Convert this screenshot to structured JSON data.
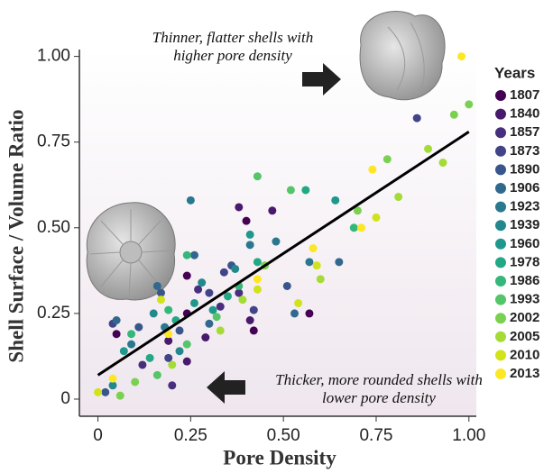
{
  "chart_data": {
    "type": "scatter",
    "x_label": "Pore Density",
    "y_label": "Shell Surface / Volume Ratio",
    "legend_title": "Years",
    "annotations": [
      [
        "Thinner, flatter shells with",
        "higher pore density"
      ],
      [
        "Thicker, more rounded shells with",
        "lower pore density"
      ]
    ],
    "xlim": [
      -0.05,
      1.02
    ],
    "ylim": [
      -0.05,
      1.02
    ],
    "xticks": [
      0,
      0.25,
      {
        "value": 0.5,
        "label": "0.50"
      },
      {
        "value": 0.75,
        "label": "0.75"
      },
      {
        "value": 1,
        "label": "1.00"
      }
    ],
    "yticks": [
      0,
      0.25,
      {
        "value": 0.5,
        "label": "0.50"
      },
      {
        "value": 0.75,
        "label": "0.75"
      },
      {
        "value": 1,
        "label": "1.00"
      }
    ],
    "trendline": {
      "color": "#000000",
      "x": [
        0,
        1
      ],
      "y": [
        0.07,
        0.78
      ]
    },
    "series": [
      {
        "name": "1807",
        "color": "#440154",
        "x": [
          0.05,
          0.24,
          0.4,
          0.57,
          0.24,
          0.42
        ],
        "values": [
          0.19,
          0.25,
          0.52,
          0.25,
          0.36,
          0.2
        ]
      },
      {
        "name": "1840",
        "color": "#481a6c",
        "x": [
          0.19,
          0.38,
          0.47,
          0.24,
          0.29,
          0.41
        ],
        "values": [
          0.17,
          0.56,
          0.55,
          0.11,
          0.18,
          0.23
        ]
      },
      {
        "name": "1857",
        "color": "#472f7d",
        "x": [
          0.2,
          0.33,
          0.38,
          0.27,
          0.12
        ],
        "values": [
          0.04,
          0.27,
          0.31,
          0.32,
          0.1
        ]
      },
      {
        "name": "1873",
        "color": "#414487",
        "x": [
          0.04,
          0.19,
          0.34,
          0.42,
          0.3,
          0.86
        ],
        "values": [
          0.22,
          0.12,
          0.37,
          0.26,
          0.31,
          0.82
        ]
      },
      {
        "name": "1890",
        "color": "#39568c",
        "x": [
          0.02,
          0.11,
          0.17,
          0.36,
          0.51,
          0.22
        ],
        "values": [
          0.02,
          0.21,
          0.31,
          0.39,
          0.33,
          0.2
        ]
      },
      {
        "name": "1906",
        "color": "#31688e",
        "x": [
          0.05,
          0.16,
          0.3,
          0.65,
          0.53,
          0.26
        ],
        "values": [
          0.23,
          0.33,
          0.22,
          0.4,
          0.25,
          0.42
        ]
      },
      {
        "name": "1923",
        "color": "#2a788e",
        "x": [
          0.09,
          0.18,
          0.25,
          0.48,
          0.41,
          0.57
        ],
        "values": [
          0.16,
          0.21,
          0.58,
          0.46,
          0.45,
          0.4
        ]
      },
      {
        "name": "1939",
        "color": "#23888e",
        "x": [
          0.15,
          0.28,
          0.04,
          0.37,
          0.22
        ],
        "values": [
          0.25,
          0.34,
          0.04,
          0.38,
          0.14
        ]
      },
      {
        "name": "1960",
        "color": "#1f988b",
        "x": [
          0.07,
          0.26,
          0.41,
          0.64,
          0.31
        ],
        "values": [
          0.14,
          0.28,
          0.48,
          0.58,
          0.26
        ]
      },
      {
        "name": "1978",
        "color": "#22a884",
        "x": [
          0.14,
          0.21,
          0.43,
          0.56,
          0.35
        ],
        "values": [
          0.12,
          0.23,
          0.4,
          0.61,
          0.3
        ]
      },
      {
        "name": "1986",
        "color": "#35b779",
        "x": [
          0.09,
          0.24,
          0.38,
          0.69,
          0.19
        ],
        "values": [
          0.19,
          0.42,
          0.33,
          0.5,
          0.26
        ]
      },
      {
        "name": "1993",
        "color": "#54c568",
        "x": [
          0.16,
          0.32,
          0.43,
          0.52,
          0.24
        ],
        "values": [
          0.07,
          0.24,
          0.65,
          0.61,
          0.16
        ]
      },
      {
        "name": "2002",
        "color": "#7ad151",
        "x": [
          0.06,
          0.1,
          0.45,
          0.78,
          0.96,
          1.0,
          0.7
        ],
        "values": [
          0.01,
          0.05,
          0.39,
          0.7,
          0.83,
          0.86,
          0.55
        ]
      },
      {
        "name": "2005",
        "color": "#a5db36",
        "x": [
          0.2,
          0.33,
          0.6,
          0.93,
          0.89,
          0.81,
          0.39
        ],
        "values": [
          0.1,
          0.2,
          0.35,
          0.69,
          0.73,
          0.59,
          0.29
        ]
      },
      {
        "name": "2010",
        "color": "#d2e21b",
        "x": [
          0.0,
          0.17,
          0.54,
          0.59,
          0.75,
          0.43
        ],
        "values": [
          0.02,
          0.29,
          0.28,
          0.39,
          0.53,
          0.32
        ]
      },
      {
        "name": "2013",
        "color": "#fde725",
        "x": [
          0.04,
          0.19,
          0.43,
          0.58,
          0.71,
          0.74,
          0.98
        ],
        "values": [
          0.06,
          0.19,
          0.35,
          0.44,
          0.5,
          0.67,
          1.0
        ]
      }
    ]
  }
}
